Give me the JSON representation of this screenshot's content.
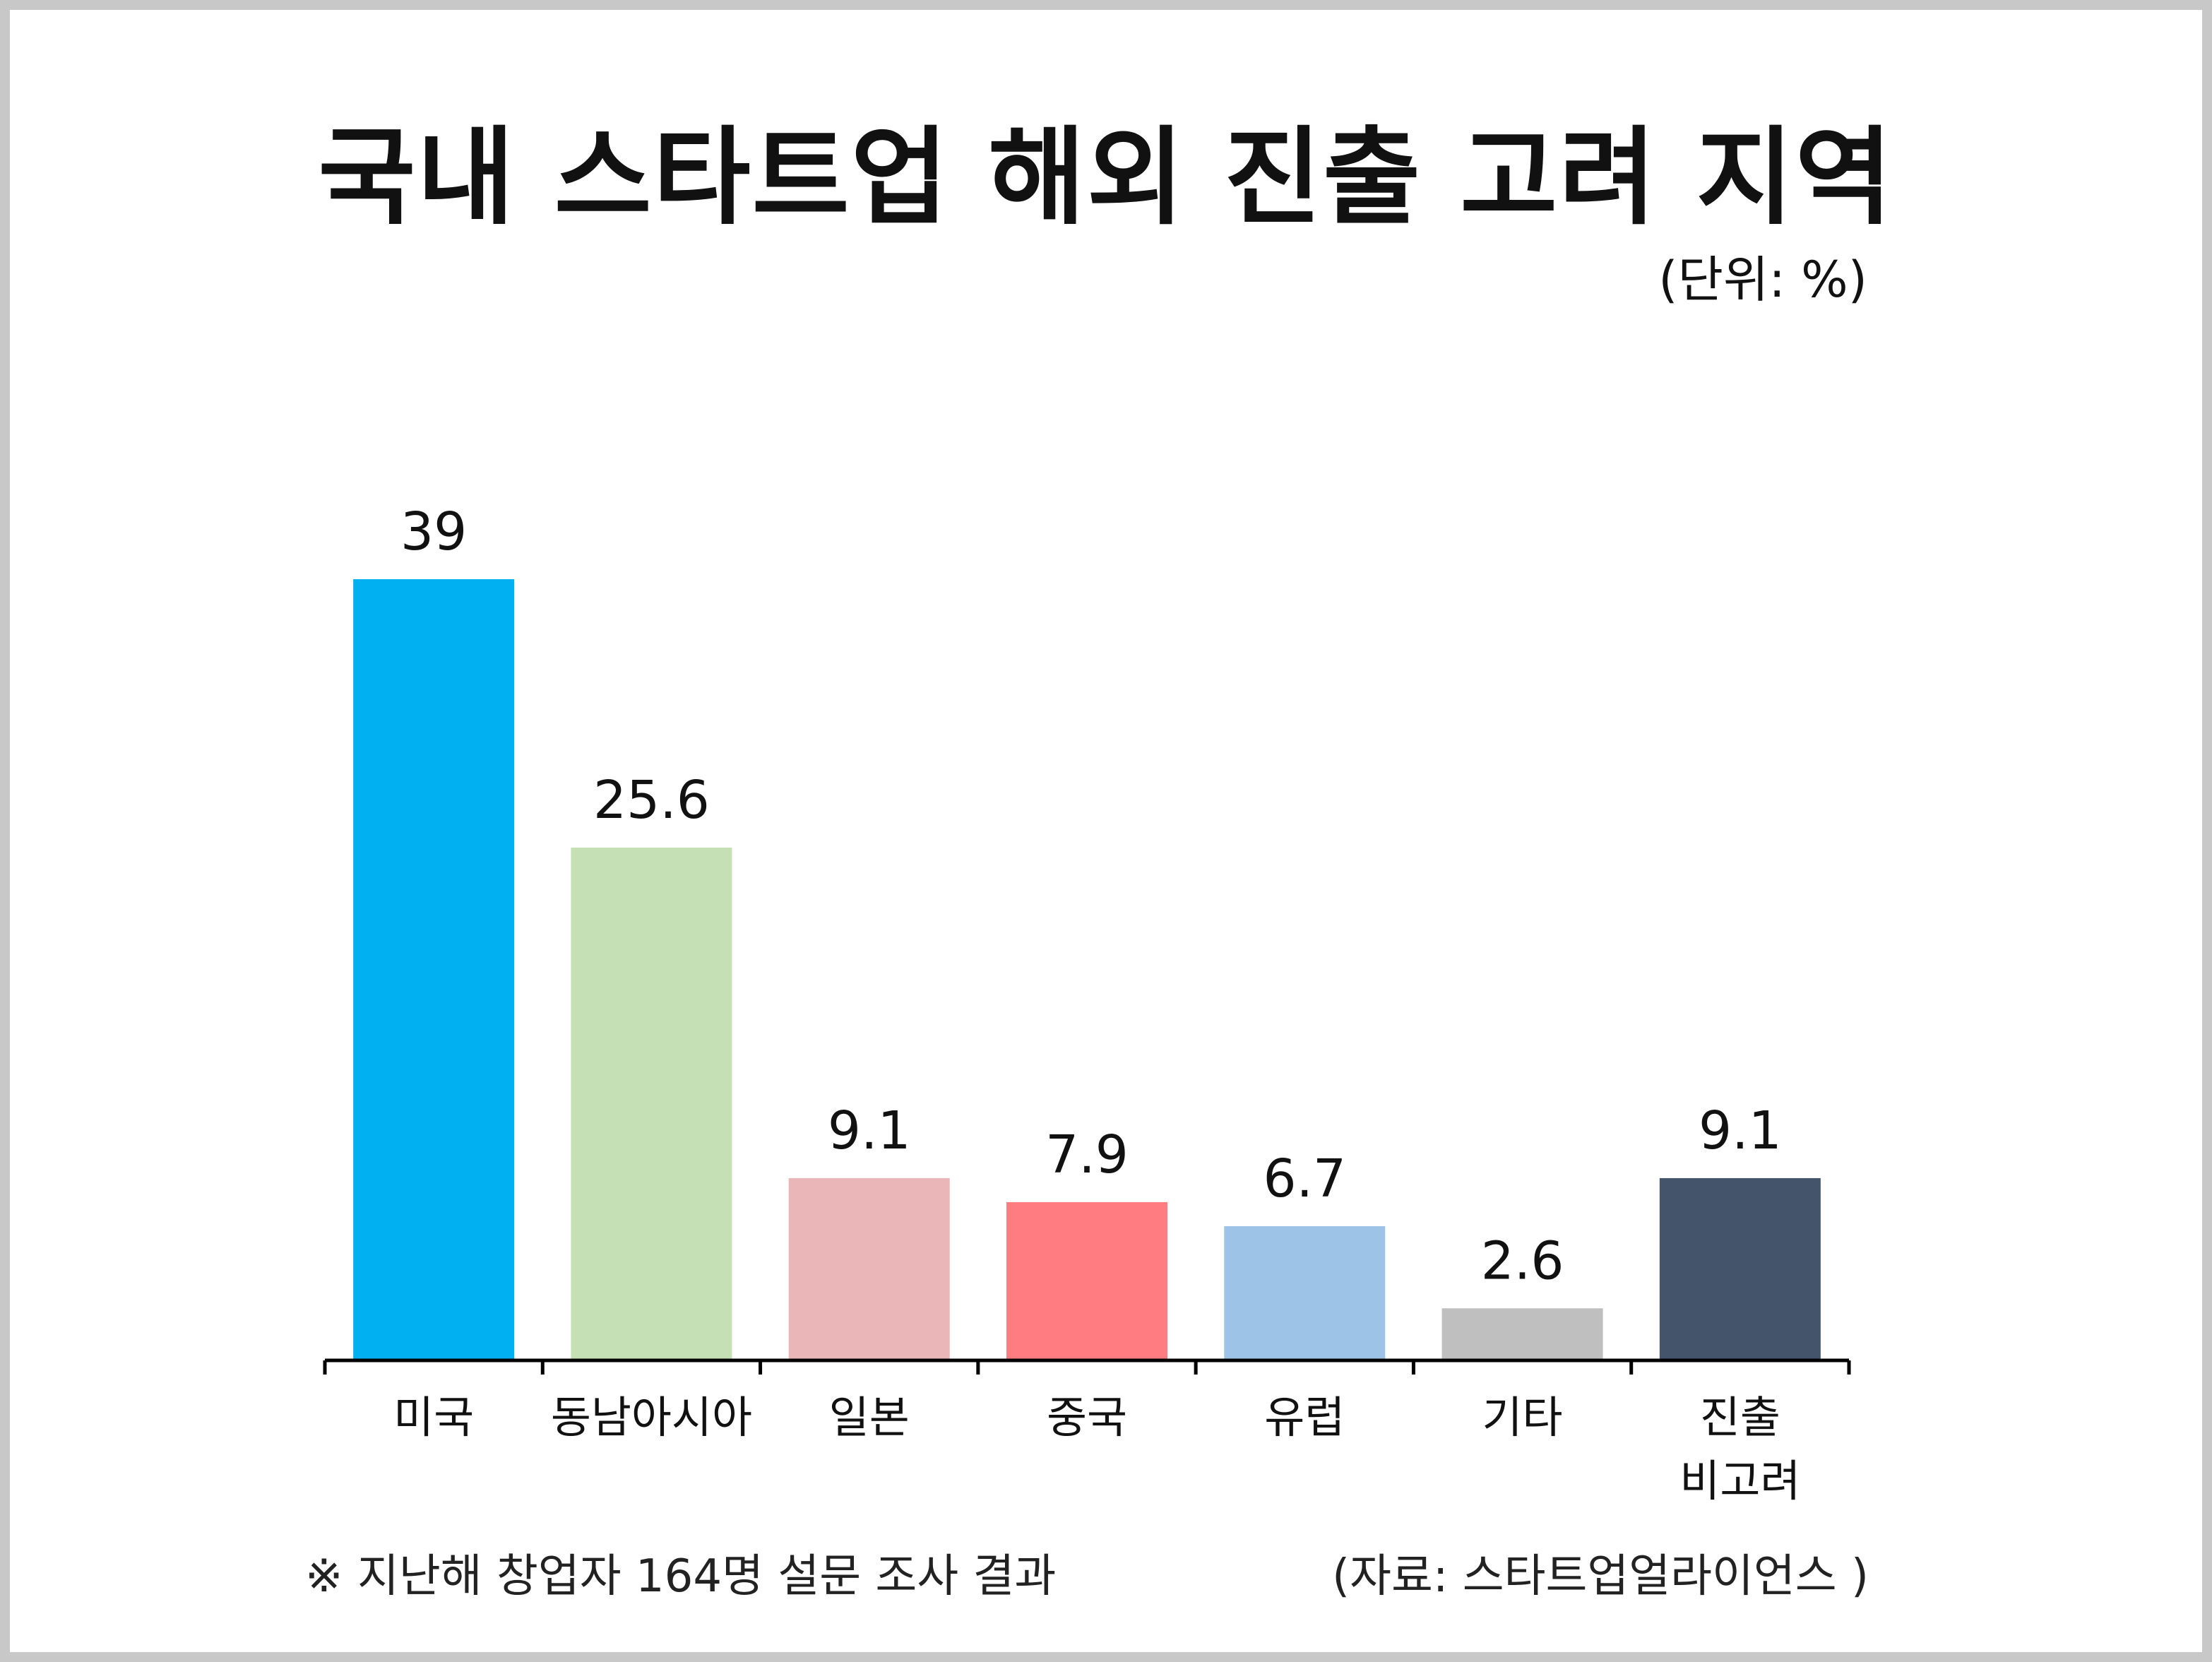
{
  "title": "국내 스타트업 해외 진출 고려 지역",
  "unit_label": "(단위: %)",
  "footnote": "※ 지난해 창업자 164명 설문 조사 결과",
  "source": "(자료: 스타트업얼라이언스 )",
  "chart_data": {
    "type": "bar",
    "categories": [
      "미국",
      "동남아시아",
      "일본",
      "중국",
      "유럽",
      "기타",
      "진출\n비고려"
    ],
    "values": [
      39,
      25.6,
      9.1,
      7.9,
      6.7,
      2.6,
      9.1
    ],
    "value_labels": [
      "39",
      "25.6",
      "9.1",
      "7.9",
      "6.7",
      "2.6",
      "9.1"
    ],
    "colors": [
      "#00b0f0",
      "#c5e0b4",
      "#ebb6b8",
      "#ff7c80",
      "#9dc3e6",
      "#bfbfbf",
      "#44546a"
    ],
    "ylim": [
      0,
      39
    ],
    "grid": false,
    "legend": "none"
  }
}
